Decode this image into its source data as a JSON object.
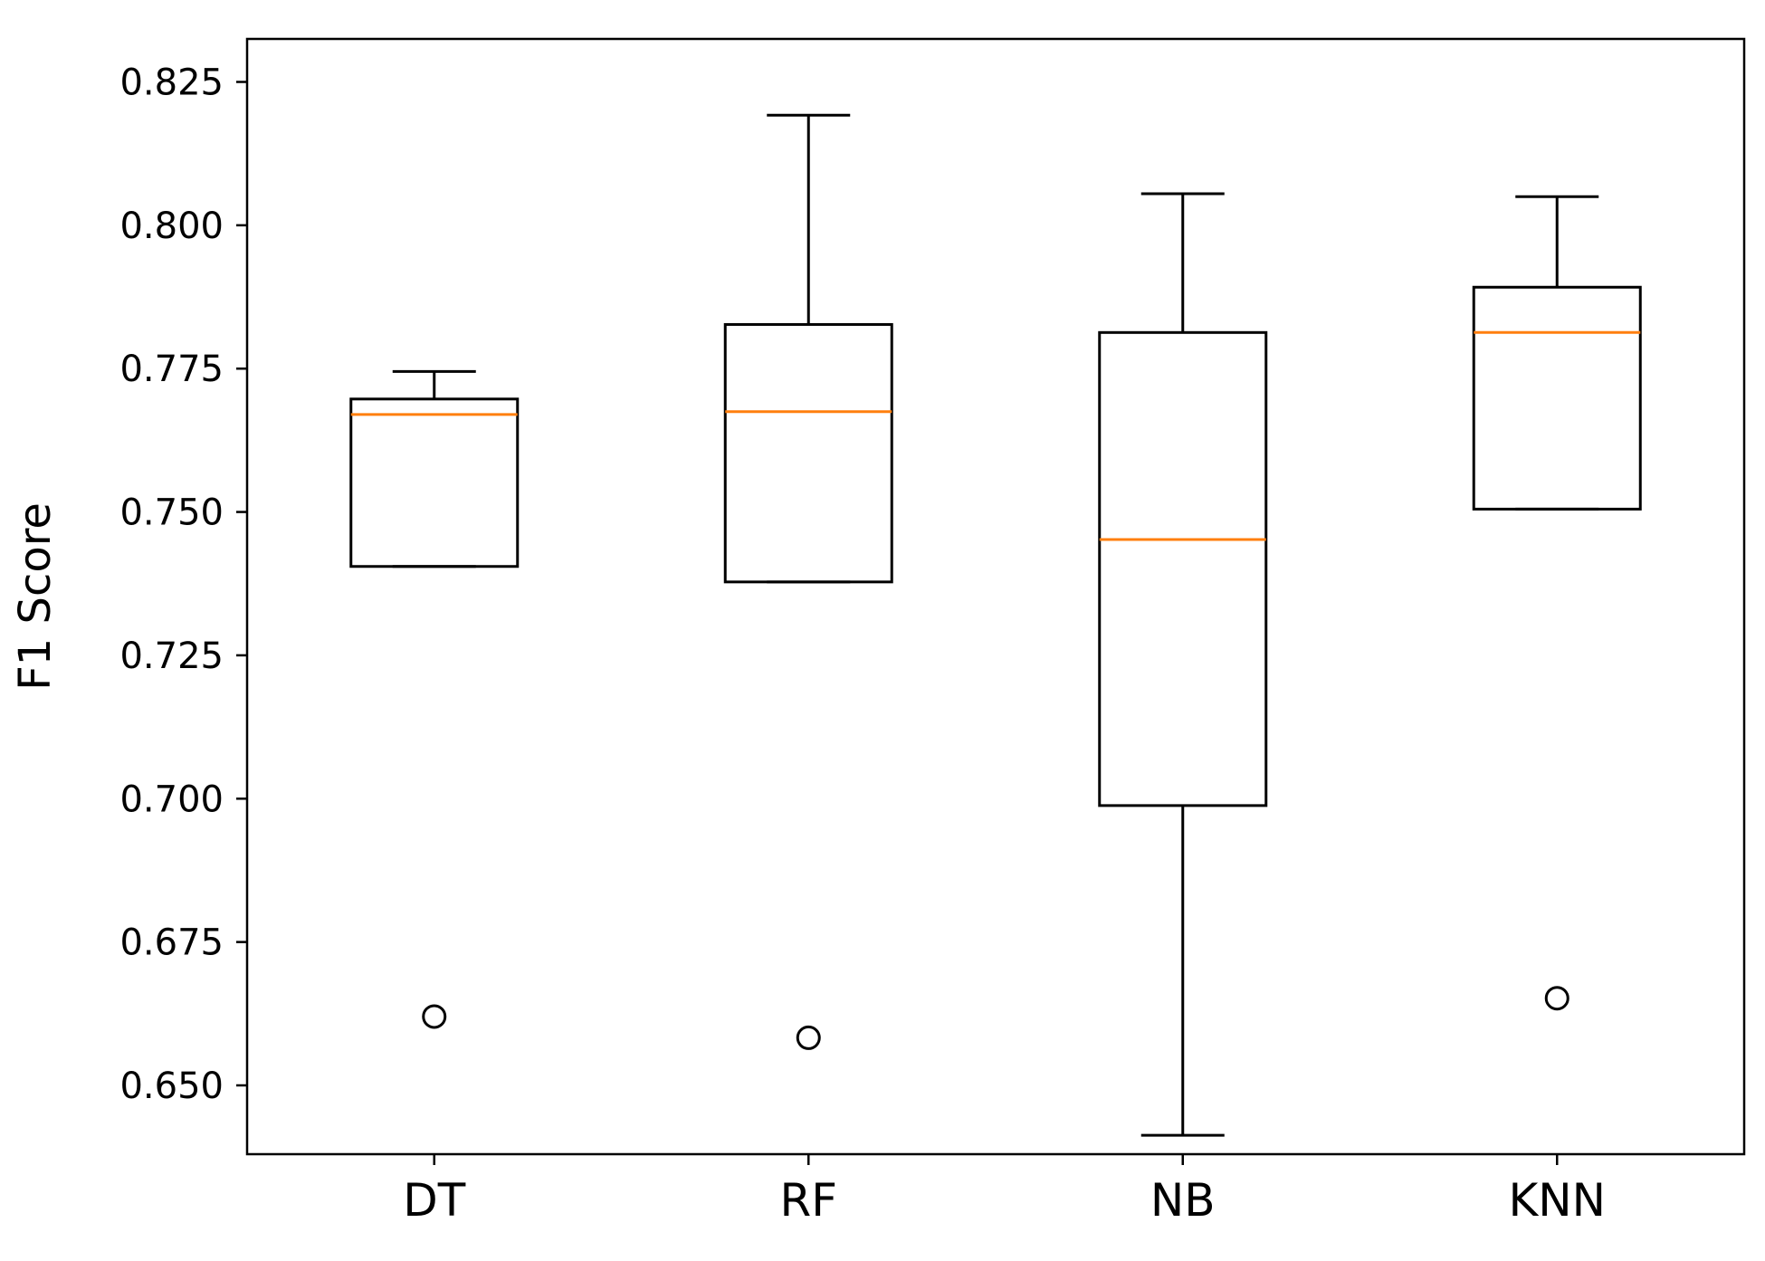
{
  "chart_data": {
    "type": "box",
    "title": "",
    "xlabel": "",
    "ylabel": "F1 Score",
    "ylim": [
      0.638,
      0.8325
    ],
    "y_ticks": [
      "0.650",
      "0.675",
      "0.700",
      "0.725",
      "0.750",
      "0.775",
      "0.800",
      "0.825"
    ],
    "categories": [
      "DT",
      "RF",
      "NB",
      "KNN"
    ],
    "boxes": [
      {
        "label": "DT",
        "whisker_low": 0.7405,
        "q1": 0.7405,
        "median": 0.767,
        "q3": 0.7697,
        "whisker_high": 0.7745,
        "outliers": [
          0.662
        ]
      },
      {
        "label": "RF",
        "whisker_low": 0.7378,
        "q1": 0.7378,
        "median": 0.7675,
        "q3": 0.7827,
        "whisker_high": 0.8192,
        "outliers": [
          0.6583
        ]
      },
      {
        "label": "NB",
        "whisker_low": 0.6413,
        "q1": 0.6988,
        "median": 0.7452,
        "q3": 0.7813,
        "whisker_high": 0.8055,
        "outliers": []
      },
      {
        "label": "KNN",
        "whisker_low": 0.7505,
        "q1": 0.7505,
        "median": 0.7813,
        "q3": 0.7892,
        "whisker_high": 0.805,
        "outliers": [
          0.6652
        ]
      }
    ],
    "grid": false,
    "colors": {
      "box": "#000000",
      "median": "#ff7f0e",
      "outlier": "#000000"
    }
  }
}
